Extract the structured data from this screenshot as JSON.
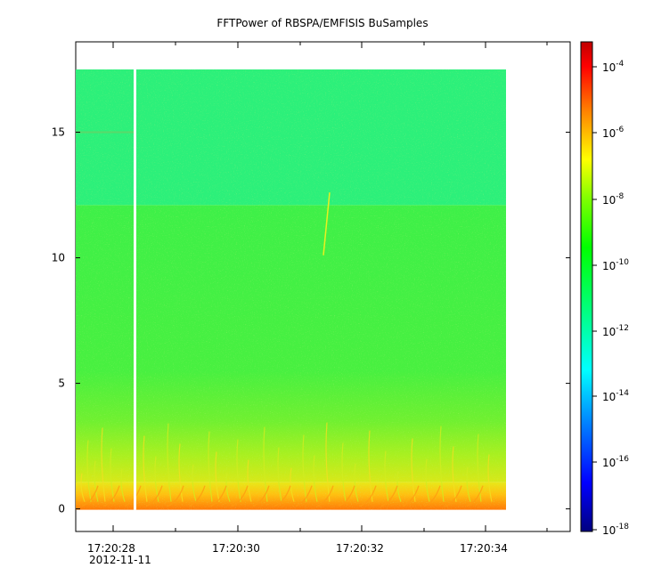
{
  "chart_data": {
    "type": "heatmap",
    "title": "FFTPower of RBSPA/EMFISIS  BuSamples",
    "x_axis": {
      "tick_labels": [
        "17:20:28",
        "17:20:30",
        "17:20:32",
        "17:20:34"
      ],
      "date_label": "2012-11-11"
    },
    "y_axis": {
      "ticks": [
        0,
        5,
        10,
        15
      ],
      "ylim": [
        -0.9,
        18.6
      ]
    },
    "colorbar": {
      "scale": "log",
      "ticks": [
        {
          "base": "10",
          "exp": "-4"
        },
        {
          "base": "10",
          "exp": "-6"
        },
        {
          "base": "10",
          "exp": "-8"
        },
        {
          "base": "10",
          "exp": "-10"
        },
        {
          "base": "10",
          "exp": "-12"
        },
        {
          "base": "10",
          "exp": "-14"
        },
        {
          "base": "10",
          "exp": "-16"
        },
        {
          "base": "10",
          "exp": "-18"
        }
      ],
      "colors": [
        "#00007f",
        "#0000ff",
        "#0080ff",
        "#00ffff",
        "#00ff80",
        "#00ff00",
        "#80ff00",
        "#ffff00",
        "#ff8000",
        "#ff0000",
        "#c00000"
      ]
    },
    "features": {
      "data_top_freq": 17.5,
      "upper_band_floor_freq": 12.1,
      "gap_time_label": "17:20:28",
      "colors": {
        "upper_band": "#2cf07a",
        "main_band": "#3cf04a",
        "low_band": "#b8f020",
        "bottom_band": "#ff9a10",
        "gap": "#ffffff"
      }
    }
  }
}
